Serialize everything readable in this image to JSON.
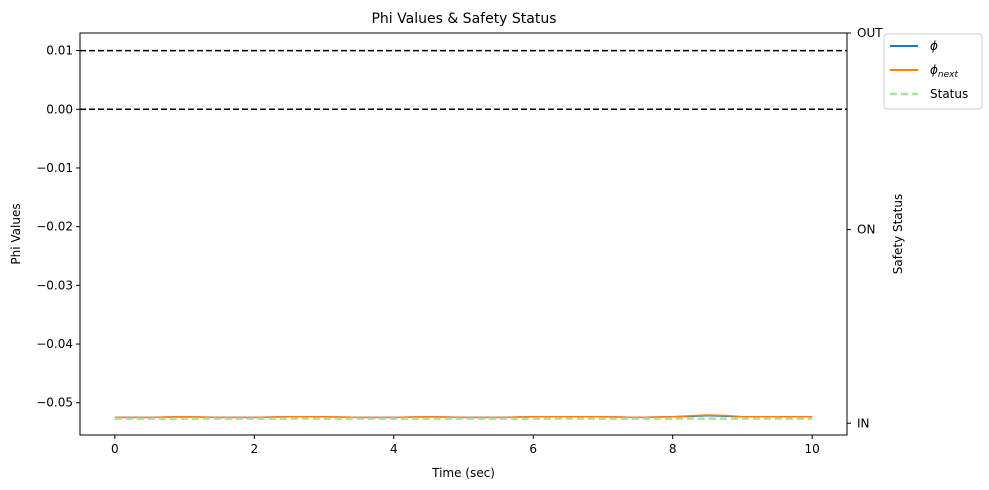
{
  "chart_data": {
    "type": "line",
    "title": "Phi Values & Safety Status",
    "xlabel": "Time (sec)",
    "ylabel": "Phi Values",
    "y2label": "Safety Status",
    "xlim": [
      -0.5,
      10.5
    ],
    "ylim": [
      -0.0555,
      0.013
    ],
    "x_ticks": [
      0,
      2,
      4,
      6,
      8,
      10
    ],
    "y_ticks": [
      0.01,
      0.0,
      -0.01,
      -0.02,
      -0.03,
      -0.04,
      -0.05
    ],
    "y_tick_labels": [
      "0.01",
      "0.00",
      "−0.01",
      "−0.02",
      "−0.03",
      "−0.04",
      "−0.05"
    ],
    "y2_ticks": [
      {
        "label": "OUT",
        "value": 0.013
      },
      {
        "label": "ON",
        "value": -0.0205
      },
      {
        "label": "IN",
        "value": -0.0535
      }
    ],
    "hlines": [
      0.01,
      0.0
    ],
    "legend_position": "outside-top-right",
    "series": [
      {
        "name": "ϕ",
        "color": "#1f77b4",
        "x": [
          0,
          0.5,
          1,
          1.5,
          2,
          2.5,
          3,
          3.5,
          4,
          4.5,
          5,
          5.5,
          6,
          6.5,
          7,
          7.5,
          8,
          8.3,
          8.5,
          8.8,
          9,
          9.5,
          10
        ],
        "y": [
          -0.0525,
          -0.0525,
          -0.0524,
          -0.0525,
          -0.0525,
          -0.0524,
          -0.0524,
          -0.0525,
          -0.0525,
          -0.0524,
          -0.0525,
          -0.0525,
          -0.0524,
          -0.0524,
          -0.0524,
          -0.0525,
          -0.0524,
          -0.0523,
          -0.0522,
          -0.0523,
          -0.0524,
          -0.0524,
          -0.0524
        ]
      },
      {
        "name": "ϕ",
        "subscript": "next",
        "color": "#ff7f0e",
        "x": [
          0,
          0.5,
          1,
          1.5,
          2,
          2.5,
          3,
          3.5,
          4,
          4.5,
          5,
          5.5,
          6,
          6.5,
          7,
          7.5,
          8,
          8.3,
          8.5,
          8.8,
          9,
          9.5,
          10
        ],
        "y": [
          -0.0525,
          -0.0525,
          -0.0524,
          -0.0525,
          -0.0525,
          -0.0524,
          -0.0524,
          -0.0525,
          -0.0525,
          -0.0524,
          -0.0525,
          -0.0525,
          -0.0524,
          -0.0524,
          -0.0524,
          -0.0525,
          -0.0524,
          -0.0522,
          -0.0521,
          -0.0522,
          -0.0524,
          -0.0524,
          -0.0524
        ]
      },
      {
        "name": "Status",
        "color": "#98df8a",
        "dashed": true,
        "x": [
          0,
          10
        ],
        "y": [
          -0.0527,
          -0.0527
        ]
      }
    ]
  }
}
